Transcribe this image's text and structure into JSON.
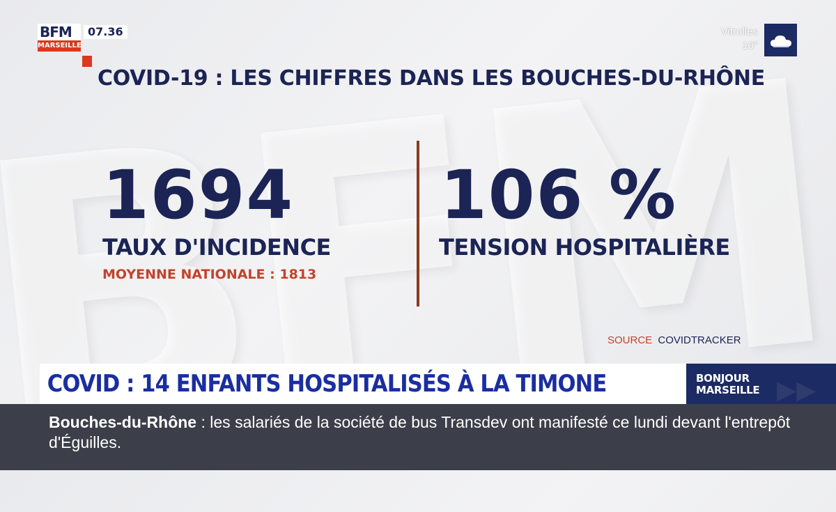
{
  "channel": {
    "logo_text": "BFM",
    "city": "MARSEILLE",
    "time": "07.36"
  },
  "weather": {
    "city": "Vitrolles",
    "temp": "10°",
    "icon": "cloud-icon"
  },
  "headline": "COVID-19 : LES CHIFFRES DANS LES BOUCHES-DU-RHÔNE",
  "stats": {
    "incidence": {
      "value": "1694",
      "label": "TAUX D'INCIDENCE",
      "sub": "MOYENNE NATIONALE : 1813"
    },
    "tension": {
      "value": "106 %",
      "label": "TENSION HOSPITALIÈRE"
    }
  },
  "source": {
    "label": "SOURCE",
    "value": "COVIDTRACKER"
  },
  "banner": {
    "text": "COVID : 14 ENFANTS HOSPITALISÉS À LA TIMONE"
  },
  "program": {
    "line1": "BONJOUR",
    "line2": "MARSEILLE"
  },
  "ticker": {
    "topic": "Bouches-du-Rhône",
    "separator": " : ",
    "text": "les salariés de la société de bus Transdev ont manifesté ce lundi devant l'entrepôt d'Éguilles."
  },
  "colors": {
    "navy": "#1b2454",
    "accent_red": "#d9391d",
    "banner_blue": "#1b2ea0",
    "ticker_bg": "#3c3f4a"
  }
}
